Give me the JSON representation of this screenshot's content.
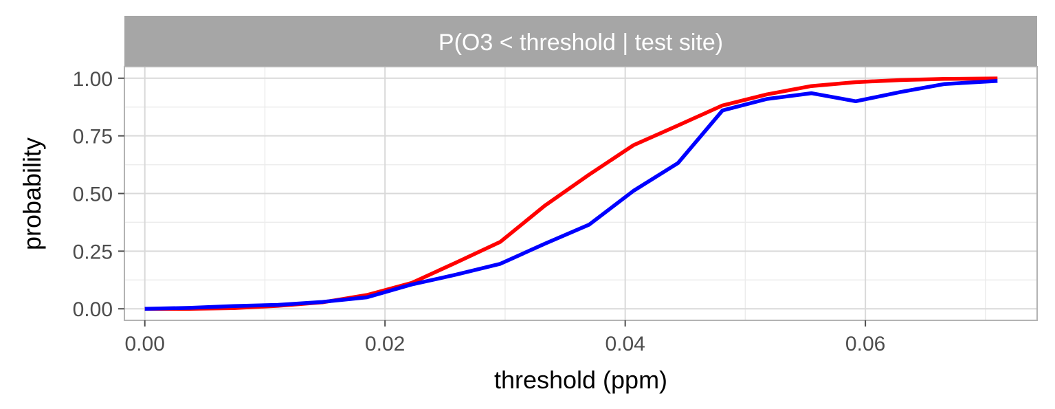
{
  "chart_data": {
    "type": "line",
    "title": "",
    "facet_label": "P(O3 < threshold | test site)",
    "xlabel": "threshold (ppm)",
    "ylabel": "probability",
    "xlim": [
      -0.0017,
      0.0743
    ],
    "ylim": [
      -0.05,
      1.05
    ],
    "x_ticks": [
      0,
      0.02,
      0.04,
      0.06
    ],
    "x_tick_labels": [
      "0.00",
      "0.02",
      "0.04",
      "0.06"
    ],
    "y_ticks": [
      0,
      0.25,
      0.5,
      0.75,
      1.0
    ],
    "y_tick_labels": [
      "0.00",
      "0.25",
      "0.50",
      "0.75",
      "1.00"
    ],
    "grid": true,
    "legend": "none",
    "x": [
      0.0,
      0.0037,
      0.0074,
      0.0111,
      0.0148,
      0.0185,
      0.0222,
      0.0259,
      0.0296,
      0.0333,
      0.037,
      0.0407,
      0.0444,
      0.0481,
      0.0518,
      0.0555,
      0.0592,
      0.0629,
      0.0666,
      0.071
    ],
    "series": [
      {
        "color": "#ff0000",
        "values": [
          0.0,
          0.0,
          0.003,
          0.013,
          0.028,
          0.06,
          0.112,
          0.2,
          0.29,
          0.447,
          0.582,
          0.71,
          0.795,
          0.882,
          0.93,
          0.966,
          0.983,
          0.992,
          0.997,
          0.999
        ]
      },
      {
        "color": "#0000ff",
        "values": [
          0.0,
          0.004,
          0.012,
          0.017,
          0.03,
          0.05,
          0.105,
          0.148,
          0.195,
          0.282,
          0.365,
          0.512,
          0.632,
          0.86,
          0.91,
          0.935,
          0.9,
          0.94,
          0.975,
          0.988
        ]
      }
    ]
  },
  "colors": {
    "strip_background": "#a6a6a6",
    "grid_major": "#d9d9d9",
    "grid_minor": "#ececec",
    "panel_border": "#b3b3b3"
  }
}
